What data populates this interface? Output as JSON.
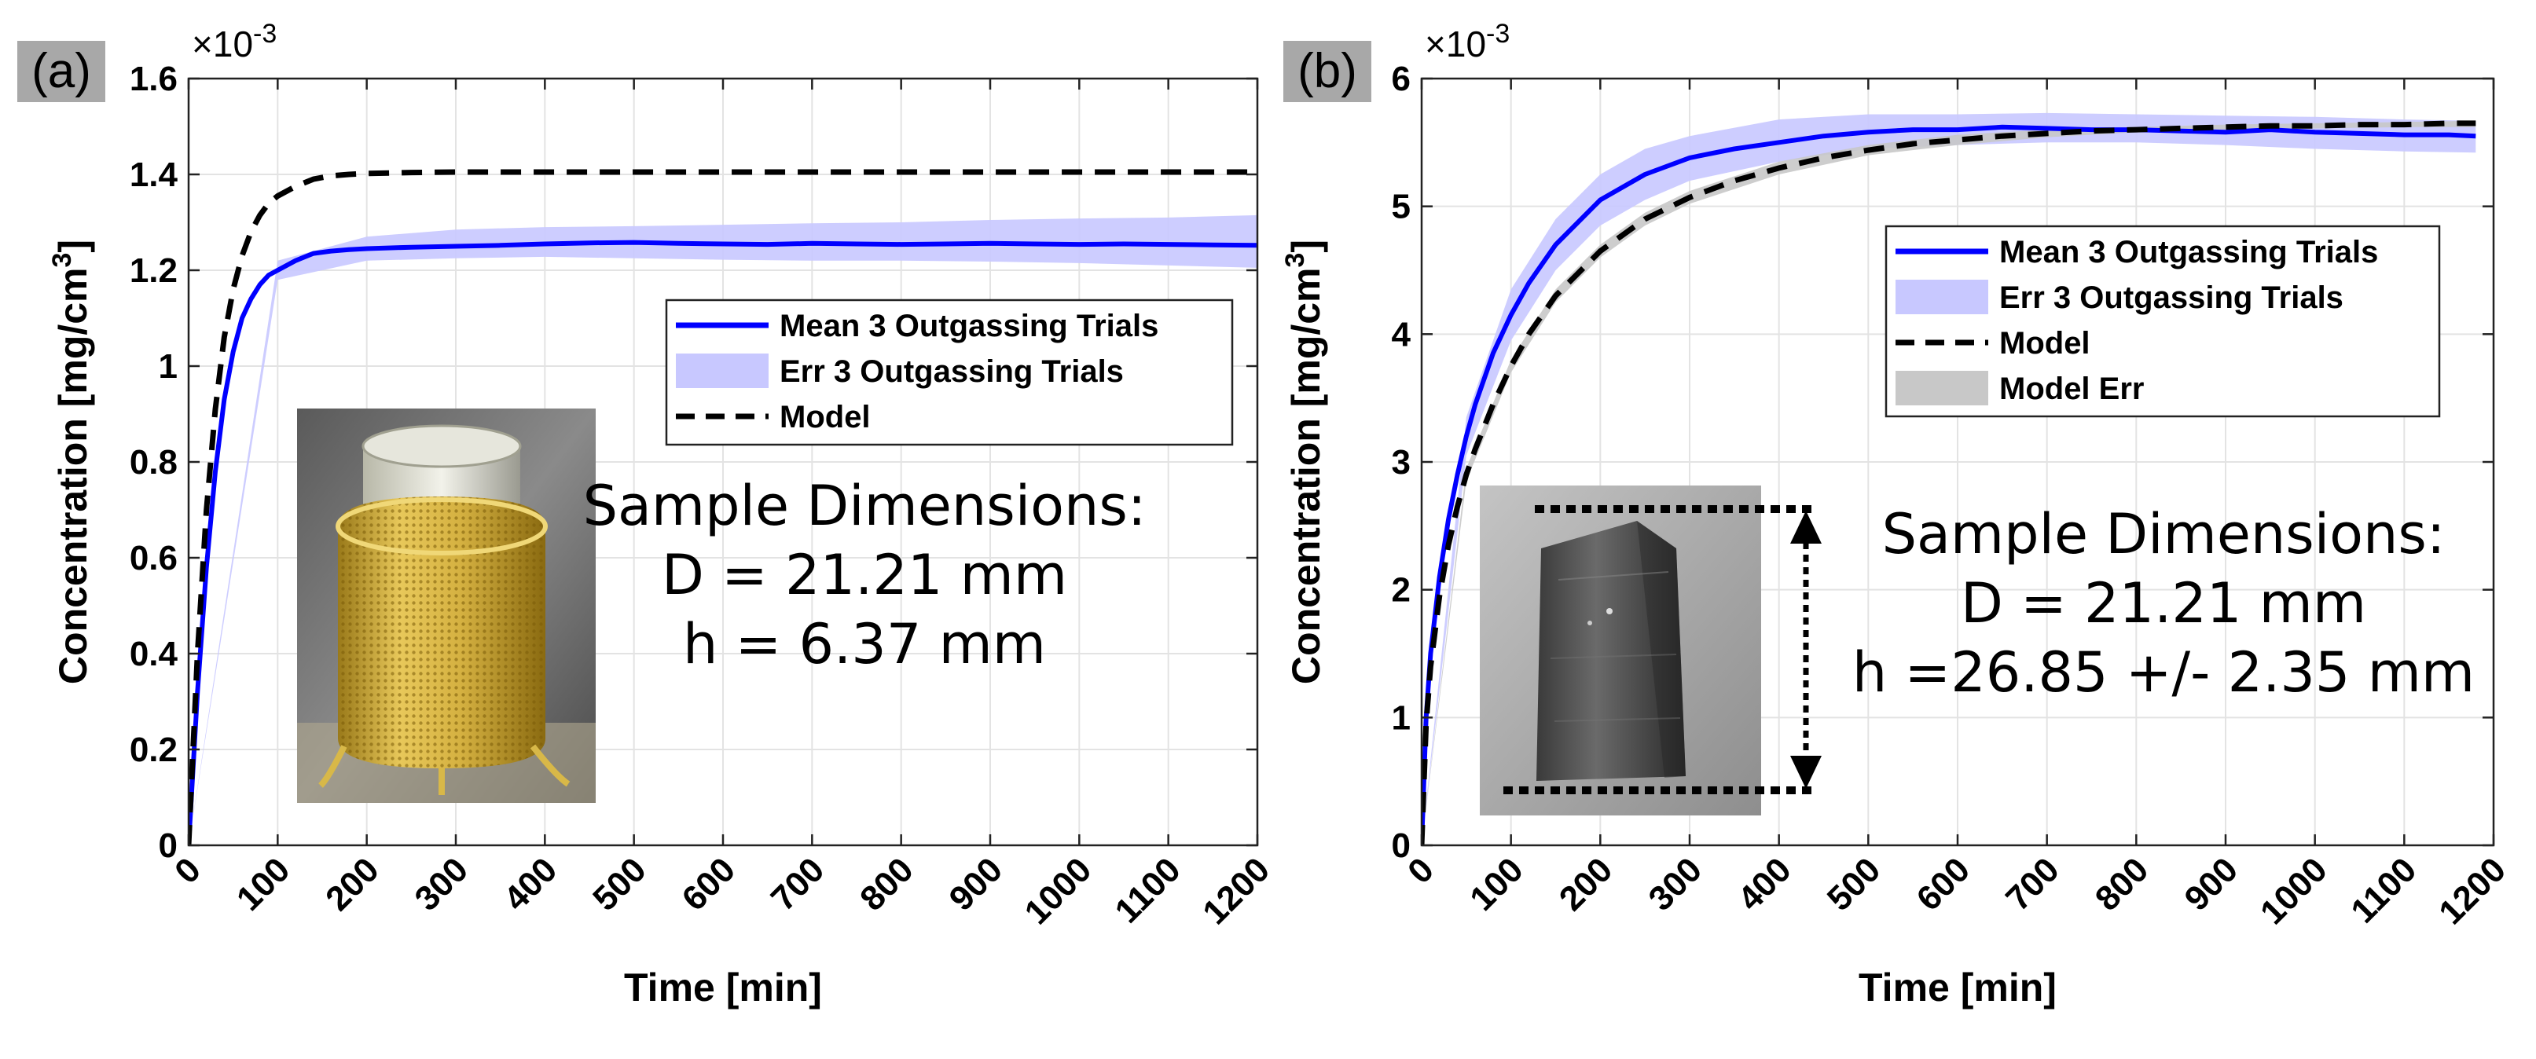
{
  "charts": [
    {
      "panel_label": "(a)",
      "chart_data": {
        "type": "line",
        "title": "",
        "xlabel": "Time [min]",
        "ylabel": "Concentration [mg/cm³]",
        "ylabel_main": "Concentration [mg/cm",
        "ylabel_sup": "3",
        "ylabel_end": "]",
        "y_multiplier": "×10",
        "y_multiplier_exp": "-3",
        "xlim": [
          0,
          1200
        ],
        "ylim": [
          0,
          1.6
        ],
        "grid": true,
        "xticks": [
          "0",
          "100",
          "200",
          "300",
          "400",
          "500",
          "600",
          "700",
          "800",
          "900",
          "1000",
          "1100",
          "1200"
        ],
        "yticks": [
          "0",
          "0.2",
          "0.4",
          "0.6",
          "0.8",
          "1",
          "1.2",
          "1.4",
          "1.6"
        ],
        "legend_position": "center-right",
        "series": [
          {
            "name": "Mean 3 Outgassing Trials",
            "kind": "line",
            "color": "#0000ff",
            "x": [
              0,
              10,
              20,
              30,
              40,
              50,
              60,
              70,
              80,
              90,
              100,
              120,
              140,
              160,
              180,
              200,
              250,
              300,
              350,
              400,
              450,
              500,
              550,
              600,
              650,
              700,
              750,
              800,
              850,
              900,
              950,
              1000,
              1050,
              1100,
              1150,
              1200
            ],
            "y": [
              0,
              0.32,
              0.58,
              0.78,
              0.93,
              1.03,
              1.1,
              1.14,
              1.17,
              1.19,
              1.2,
              1.22,
              1.235,
              1.24,
              1.243,
              1.245,
              1.248,
              1.25,
              1.252,
              1.255,
              1.257,
              1.258,
              1.256,
              1.255,
              1.254,
              1.256,
              1.255,
              1.254,
              1.255,
              1.256,
              1.255,
              1.254,
              1.255,
              1.254,
              1.253,
              1.252
            ]
          },
          {
            "name": "Err 3 Outgassing Trials",
            "kind": "band",
            "color": "#c8c8ff",
            "x": [
              0,
              100,
              200,
              300,
              400,
              500,
              600,
              700,
              800,
              900,
              1000,
              1100,
              1200
            ],
            "lower": [
              0,
              1.18,
              1.22,
              1.225,
              1.228,
              1.225,
              1.222,
              1.22,
              1.22,
              1.218,
              1.215,
              1.21,
              1.205
            ],
            "upper": [
              0,
              1.22,
              1.27,
              1.285,
              1.29,
              1.292,
              1.295,
              1.298,
              1.3,
              1.305,
              1.308,
              1.31,
              1.315
            ]
          },
          {
            "name": "Model",
            "kind": "dashed",
            "color": "#000000",
            "x": [
              0,
              10,
              20,
              30,
              40,
              50,
              60,
              70,
              80,
              90,
              100,
              120,
              140,
              160,
              180,
              200,
              250,
              300,
              400,
              500,
              600,
              700,
              800,
              900,
              1000,
              1100,
              1200
            ],
            "y": [
              0,
              0.4,
              0.7,
              0.91,
              1.06,
              1.16,
              1.23,
              1.28,
              1.315,
              1.34,
              1.355,
              1.375,
              1.39,
              1.397,
              1.4,
              1.402,
              1.404,
              1.405,
              1.405,
              1.405,
              1.405,
              1.405,
              1.405,
              1.405,
              1.405,
              1.405,
              1.405
            ]
          }
        ]
      },
      "annotation": {
        "heading": "Sample Dimensions:",
        "line1": "D = 21.21 mm",
        "line2": "h = 6.37 mm"
      }
    },
    {
      "panel_label": "(b)",
      "chart_data": {
        "type": "line",
        "title": "",
        "xlabel": "Time [min]",
        "ylabel": "Concentration [mg/cm³]",
        "ylabel_main": "Concentration [mg/cm",
        "ylabel_sup": "3",
        "ylabel_end": "]",
        "y_multiplier": "×10",
        "y_multiplier_exp": "-3",
        "xlim": [
          0,
          1200
        ],
        "ylim": [
          0,
          6
        ],
        "grid": true,
        "xticks": [
          "0",
          "100",
          "200",
          "300",
          "400",
          "500",
          "600",
          "700",
          "800",
          "900",
          "1000",
          "1100",
          "1200"
        ],
        "yticks": [
          "0",
          "1",
          "2",
          "3",
          "4",
          "5",
          "6"
        ],
        "legend_position": "top-right",
        "series": [
          {
            "name": "Mean 3 Outgassing Trials",
            "kind": "line",
            "color": "#0000ff",
            "x": [
              0,
              5,
              10,
              20,
              30,
              40,
              50,
              60,
              80,
              100,
              120,
              150,
              200,
              250,
              300,
              350,
              400,
              450,
              500,
              550,
              600,
              650,
              700,
              750,
              800,
              850,
              900,
              950,
              1000,
              1050,
              1100,
              1150,
              1180
            ],
            "y": [
              0,
              1.0,
              1.5,
              2.1,
              2.55,
              2.9,
              3.2,
              3.45,
              3.85,
              4.15,
              4.4,
              4.7,
              5.05,
              5.25,
              5.38,
              5.45,
              5.5,
              5.55,
              5.58,
              5.6,
              5.6,
              5.62,
              5.61,
              5.6,
              5.6,
              5.59,
              5.58,
              5.6,
              5.58,
              5.57,
              5.56,
              5.56,
              5.55
            ]
          },
          {
            "name": "Err 3 Outgassing Trials",
            "kind": "band",
            "color": "#c8c8ff",
            "x": [
              0,
              50,
              100,
              150,
              200,
              250,
              300,
              400,
              500,
              600,
              700,
              800,
              900,
              1000,
              1100,
              1180
            ],
            "lower": [
              0,
              3.05,
              3.95,
              4.5,
              4.85,
              5.05,
              5.2,
              5.35,
              5.45,
              5.48,
              5.5,
              5.5,
              5.48,
              5.45,
              5.43,
              5.42
            ],
            "upper": [
              0,
              3.35,
              4.35,
              4.9,
              5.25,
              5.45,
              5.55,
              5.68,
              5.72,
              5.72,
              5.73,
              5.72,
              5.71,
              5.7,
              5.68,
              5.67
            ]
          },
          {
            "name": "Model",
            "kind": "dashed",
            "color": "#000000",
            "x": [
              0,
              5,
              10,
              20,
              30,
              40,
              50,
              60,
              80,
              100,
              120,
              150,
              200,
              250,
              300,
              350,
              400,
              450,
              500,
              550,
              600,
              650,
              700,
              750,
              800,
              850,
              900,
              950,
              1000,
              1050,
              1100,
              1150,
              1180
            ],
            "y": [
              0,
              0.95,
              1.4,
              1.95,
              2.35,
              2.65,
              2.9,
              3.1,
              3.45,
              3.75,
              4.0,
              4.3,
              4.65,
              4.9,
              5.07,
              5.2,
              5.3,
              5.38,
              5.44,
              5.49,
              5.52,
              5.55,
              5.57,
              5.59,
              5.6,
              5.61,
              5.62,
              5.63,
              5.63,
              5.64,
              5.64,
              5.65,
              5.65
            ]
          },
          {
            "name": "Model Err",
            "kind": "band",
            "color": "#c8c8c8",
            "x": [
              0,
              50,
              100,
              150,
              200,
              250,
              300,
              400,
              500,
              600,
              700,
              800,
              900,
              1000,
              1100,
              1180
            ],
            "lower": [
              0,
              2.85,
              3.7,
              4.25,
              4.6,
              4.85,
              5.02,
              5.25,
              5.4,
              5.48,
              5.54,
              5.58,
              5.6,
              5.61,
              5.62,
              5.62
            ],
            "upper": [
              0,
              2.95,
              3.8,
              4.35,
              4.7,
              4.95,
              5.12,
              5.35,
              5.48,
              5.56,
              5.6,
              5.62,
              5.64,
              5.65,
              5.66,
              5.67
            ]
          }
        ]
      },
      "annotation": {
        "heading": "Sample Dimensions:",
        "line1": "D = 21.21 mm",
        "line2": "h =26.85 +/- 2.35 mm"
      }
    }
  ],
  "colors": {
    "mean_line": "#0000ff",
    "err_band": "#c8c8ff",
    "model_line": "#000000",
    "model_err_band": "#c8c8c8",
    "grid": "#e3e3e3",
    "panel_label_bg": "#a8a8a8"
  }
}
